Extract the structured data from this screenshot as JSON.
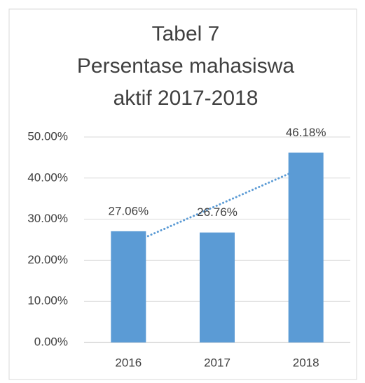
{
  "chart_data": {
    "type": "bar",
    "title": [
      "Tabel  7",
      "Persentase mahasiswa",
      "aktif 2017-2018"
    ],
    "categories": [
      "2016",
      "2017",
      "2018"
    ],
    "values": [
      27.06,
      26.76,
      46.18
    ],
    "value_labels": [
      "27.06%",
      "26.76%",
      "46.18%"
    ],
    "color": "#5b9bd5",
    "trendline": "linear",
    "ylim": [
      0,
      50
    ],
    "yticks": [
      {
        "value": 0,
        "label": "0.00%"
      },
      {
        "value": 10,
        "label": "10.00%"
      },
      {
        "value": 20,
        "label": "20.00%"
      },
      {
        "value": 30,
        "label": "30.00%"
      },
      {
        "value": 40,
        "label": "40.00%"
      },
      {
        "value": 50,
        "label": "50.00%"
      }
    ],
    "grid": true
  }
}
